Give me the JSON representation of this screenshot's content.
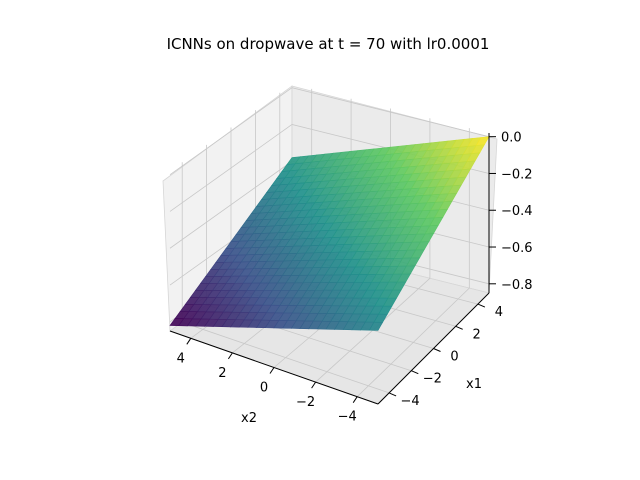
{
  "chart_data": {
    "type": "surface3d",
    "title": "ICNNs on dropwave at t = 70 with lr0.0001",
    "xlabel": "x1",
    "ylabel": "x2",
    "zlabel": "",
    "xlim": [
      -5,
      5
    ],
    "ylim": [
      -5,
      5
    ],
    "zlim": [
      -0.85,
      0.02
    ],
    "x_ticks": [
      -4,
      -2,
      0,
      2,
      4
    ],
    "x_tick_labels": [
      "−4",
      "−2",
      "0",
      "2",
      "4"
    ],
    "y_ticks": [
      4,
      2,
      0,
      -2,
      -4
    ],
    "y_tick_labels": [
      "4",
      "2",
      "0",
      "−2",
      "−4"
    ],
    "z_ticks": [
      0.0,
      -0.2,
      -0.4,
      -0.6,
      -0.8
    ],
    "z_tick_labels": [
      "0.0",
      "−0.2",
      "−0.4",
      "−0.6",
      "−0.8"
    ],
    "colormap": "viridis",
    "surface_corners": [
      {
        "x1": -5,
        "x2": 5,
        "z": -0.82
      },
      {
        "x1": -5,
        "x2": -5,
        "z": -0.38
      },
      {
        "x1": 5,
        "x2": 5,
        "z": -0.45
      },
      {
        "x1": 5,
        "x2": -5,
        "z": 0.0
      }
    ],
    "colormap_stops": [
      "#440154",
      "#3b528b",
      "#21918c",
      "#5ec962",
      "#fde725"
    ]
  }
}
